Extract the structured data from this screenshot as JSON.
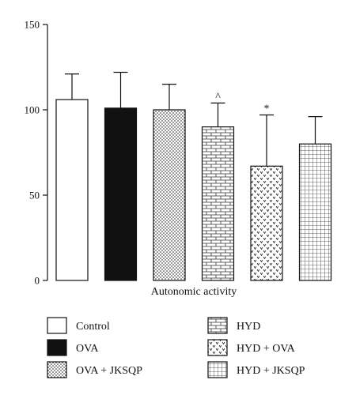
{
  "chart_data": {
    "type": "bar",
    "categories": [
      "Control",
      "OVA",
      "OVA + JKSQP",
      "HYD",
      "HYD + OVA",
      "HYD + JKSQP"
    ],
    "values": [
      106,
      101,
      100,
      90,
      67,
      80
    ],
    "errors": [
      15,
      21,
      15,
      14,
      30,
      16
    ],
    "patterns": [
      "white",
      "black",
      "dots",
      "brick",
      "hearts",
      "grid"
    ],
    "annotations": [
      "",
      "",
      "",
      "^",
      "*",
      ""
    ],
    "xlabel": "Autonomic activity",
    "ylabel": "",
    "ylim": [
      0,
      150
    ],
    "yticks": [
      "0",
      "50",
      "100",
      "150"
    ],
    "ytick_values": [
      0,
      50,
      100,
      150
    ],
    "legend_position": "bottom"
  }
}
